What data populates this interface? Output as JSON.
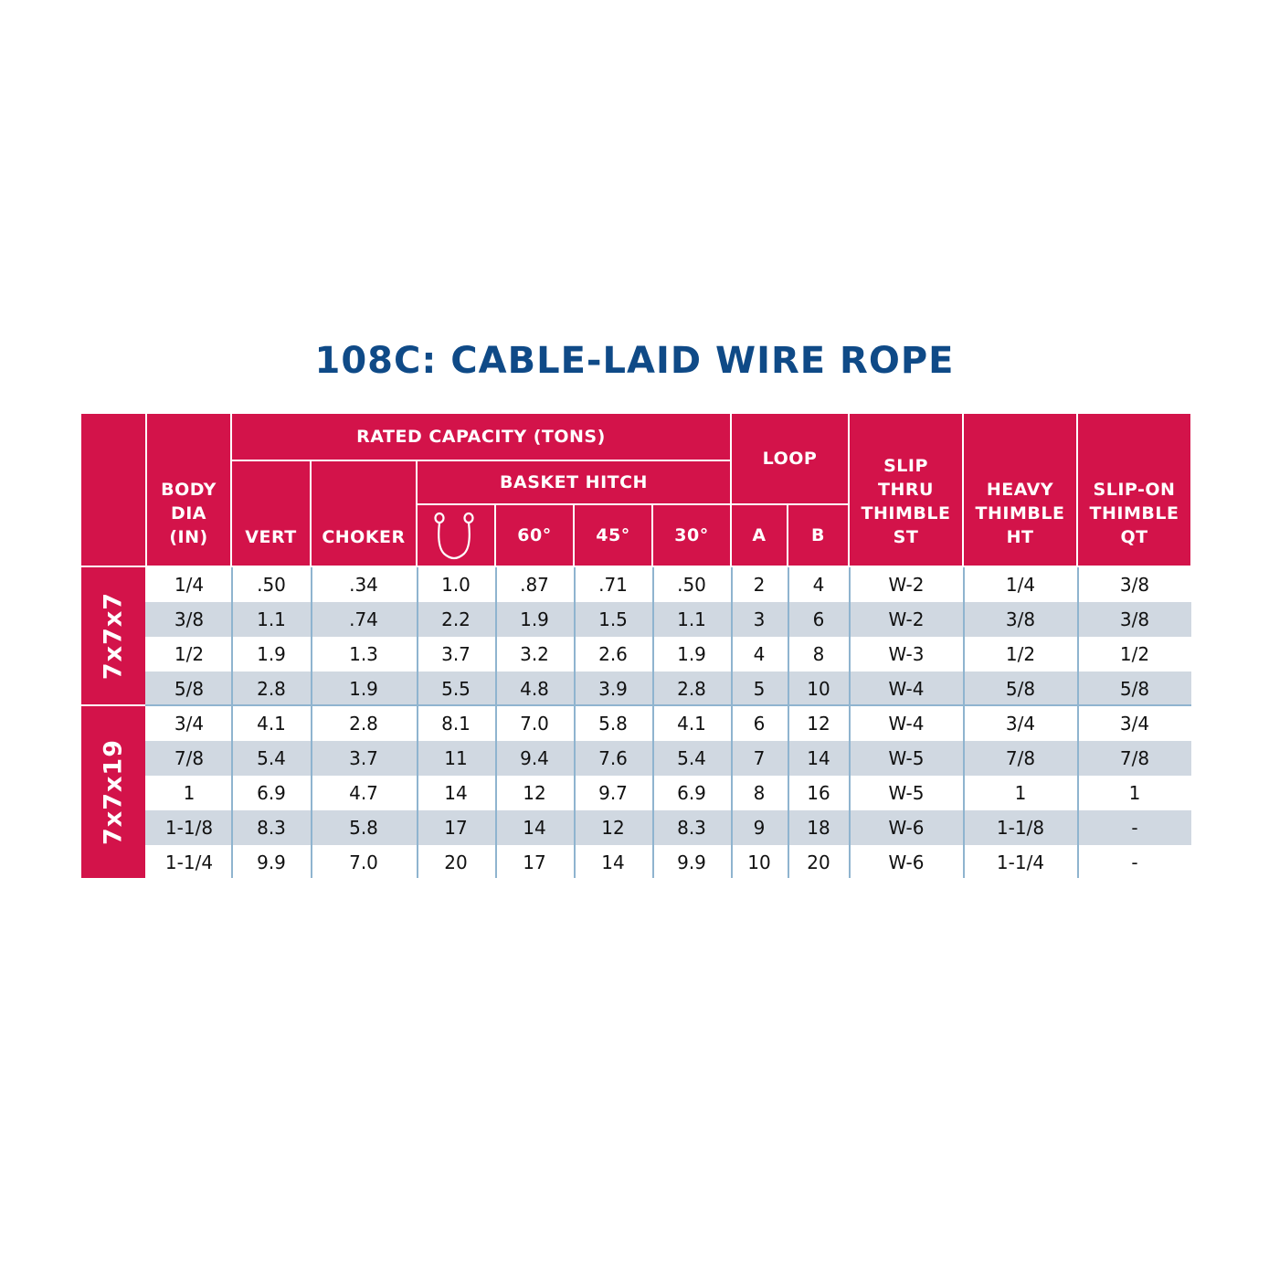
{
  "title": "108C: CABLE-LAID WIRE ROPE",
  "header": {
    "body_dia": "BODY\nDIA\n(IN)",
    "rated_capacity": "RATED CAPACITY (TONS)",
    "vert": "VERT",
    "choker": "CHOKER",
    "basket_hitch": "BASKET HITCH",
    "deg60": "60°",
    "deg45": "45°",
    "deg30": "30°",
    "loop": "LOOP",
    "loop_a": "A",
    "loop_b": "B",
    "slip_thru": "SLIP\nTHRU\nTHIMBLE\nST",
    "heavy": "HEAVY\nTHIMBLE\nHT",
    "slip_on": "SLIP-ON\nTHIMBLE\nQT",
    "basket_icon": "basket-sling-icon"
  },
  "colors": {
    "header_bg": "#d3134a",
    "title": "#0f4a87",
    "shade": "#d0d8e1",
    "rule": "#8fb4cf"
  },
  "groups": [
    {
      "label": "7x7x7",
      "rows": [
        [
          "1/4",
          ".50",
          ".34",
          "1.0",
          ".87",
          ".71",
          ".50",
          "2",
          "4",
          "W-2",
          "1/4",
          "3/8"
        ],
        [
          "3/8",
          "1.1",
          ".74",
          "2.2",
          "1.9",
          "1.5",
          "1.1",
          "3",
          "6",
          "W-2",
          "3/8",
          "3/8"
        ],
        [
          "1/2",
          "1.9",
          "1.3",
          "3.7",
          "3.2",
          "2.6",
          "1.9",
          "4",
          "8",
          "W-3",
          "1/2",
          "1/2"
        ],
        [
          "5/8",
          "2.8",
          "1.9",
          "5.5",
          "4.8",
          "3.9",
          "2.8",
          "5",
          "10",
          "W-4",
          "5/8",
          "5/8"
        ]
      ]
    },
    {
      "label": "7x7x19",
      "rows": [
        [
          "3/4",
          "4.1",
          "2.8",
          "8.1",
          "7.0",
          "5.8",
          "4.1",
          "6",
          "12",
          "W-4",
          "3/4",
          "3/4"
        ],
        [
          "7/8",
          "5.4",
          "3.7",
          "11",
          "9.4",
          "7.6",
          "5.4",
          "7",
          "14",
          "W-5",
          "7/8",
          "7/8"
        ],
        [
          "1",
          "6.9",
          "4.7",
          "14",
          "12",
          "9.7",
          "6.9",
          "8",
          "16",
          "W-5",
          "1",
          "1"
        ],
        [
          "1-1/8",
          "8.3",
          "5.8",
          "17",
          "14",
          "12",
          "8.3",
          "9",
          "18",
          "W-6",
          "1-1/8",
          "-"
        ],
        [
          "1-1/4",
          "9.9",
          "7.0",
          "20",
          "17",
          "14",
          "9.9",
          "10",
          "20",
          "W-6",
          "1-1/4",
          "-"
        ]
      ]
    }
  ]
}
